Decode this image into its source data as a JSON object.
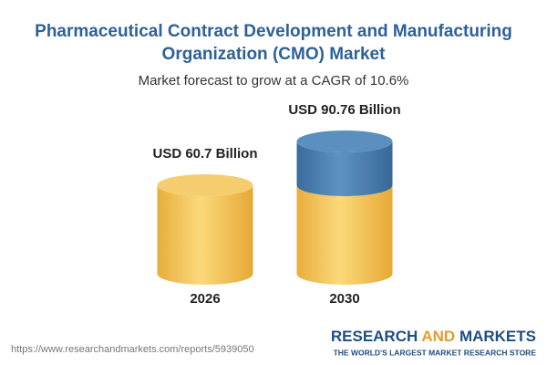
{
  "chart_data": {
    "type": "cylinder",
    "title": [
      "Pharmaceutical Contract Development and Manufacturing",
      "Organization (CMO) Market"
    ],
    "subtitle": "Market forecast to grow at a CAGR of 10.6%",
    "categories": [
      "2026",
      "2030"
    ],
    "values": [
      60.7,
      90.76
    ],
    "value_labels": [
      "USD 60.7 Billion",
      "USD 90.76 Billion"
    ],
    "color": "#f3c25a",
    "growth_color": "#4a7eb0"
  },
  "footer": {
    "source": "https://www.researchandmarkets.com/reports/5939050",
    "brand": [
      "RESEARCH",
      "AND",
      "MARKETS"
    ],
    "tagline": "THE WORLD'S LARGEST MARKET RESEARCH STORE"
  }
}
